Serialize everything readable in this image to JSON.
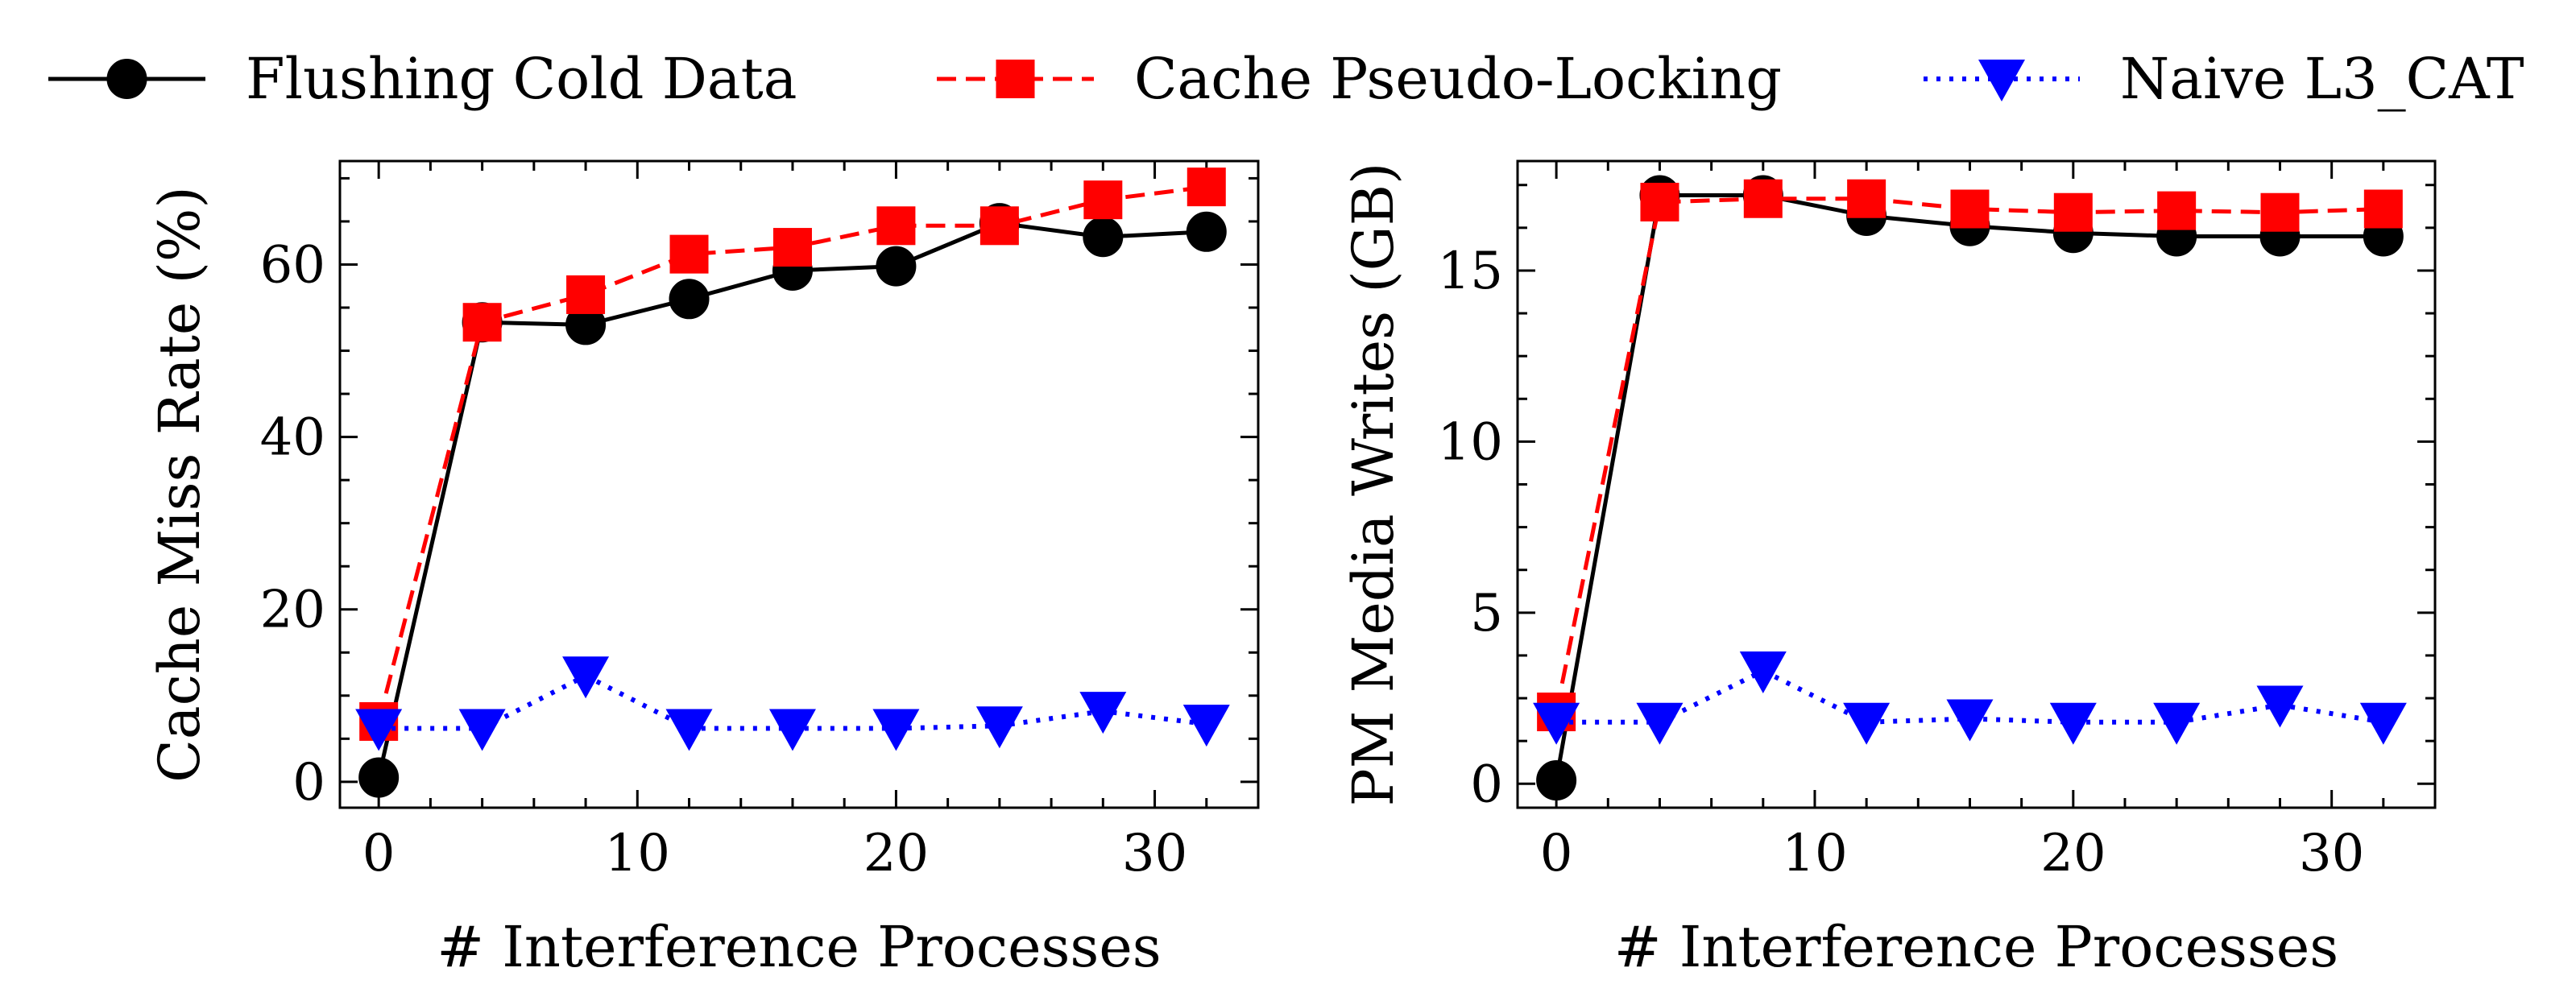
{
  "legend": {
    "placement": "top",
    "entries": [
      {
        "label": "Flushing Cold Data",
        "color": "#000000",
        "marker": "circle",
        "linestyle": "solid"
      },
      {
        "label": "Cache Pseudo-Locking",
        "color": "#ff0000",
        "marker": "square",
        "linestyle": "dashed"
      },
      {
        "label": "Naive L3_CAT",
        "color": "#0000ff",
        "marker": "triangle-down",
        "linestyle": "dotted"
      }
    ]
  },
  "chart_data": [
    {
      "type": "line",
      "xlabel": "# Interference Processes",
      "ylabel": "Cache Miss Rate (%)",
      "xlim": [
        -1.5,
        34
      ],
      "ylim": [
        -3,
        72
      ],
      "xticks": [
        0,
        10,
        20,
        30
      ],
      "yticks": [
        0,
        20,
        40,
        60
      ],
      "x": [
        0,
        4,
        8,
        12,
        16,
        20,
        24,
        28,
        32
      ],
      "series": [
        {
          "name": "Flushing Cold Data",
          "values": [
            0.5,
            53.3,
            53.0,
            56.0,
            59.3,
            59.8,
            64.8,
            63.2,
            63.8
          ]
        },
        {
          "name": "Cache Pseudo-Locking",
          "values": [
            7.0,
            53.3,
            56.5,
            61.2,
            62.0,
            64.5,
            64.5,
            67.5,
            69.0
          ]
        },
        {
          "name": "Naive L3_CAT",
          "values": [
            6.2,
            6.2,
            12.3,
            6.2,
            6.2,
            6.2,
            6.5,
            8.2,
            6.7
          ]
        }
      ]
    },
    {
      "type": "line",
      "xlabel": "# Interference Processes",
      "ylabel": "PM Media Writes (GB)",
      "xlim": [
        -1.5,
        34
      ],
      "ylim": [
        -0.7,
        18.2
      ],
      "xticks": [
        0,
        10,
        20,
        30
      ],
      "yticks": [
        0,
        5,
        10,
        15
      ],
      "x": [
        0,
        4,
        8,
        12,
        16,
        20,
        24,
        28,
        32
      ],
      "series": [
        {
          "name": "Flushing Cold Data",
          "values": [
            0.1,
            17.2,
            17.2,
            16.6,
            16.3,
            16.1,
            16.0,
            16.0,
            16.0
          ]
        },
        {
          "name": "Cache Pseudo-Locking",
          "values": [
            2.1,
            17.0,
            17.1,
            17.1,
            16.8,
            16.7,
            16.75,
            16.7,
            16.8
          ]
        },
        {
          "name": "Naive L3_CAT",
          "values": [
            1.8,
            1.8,
            3.3,
            1.8,
            1.9,
            1.8,
            1.8,
            2.3,
            1.8
          ]
        }
      ]
    }
  ]
}
